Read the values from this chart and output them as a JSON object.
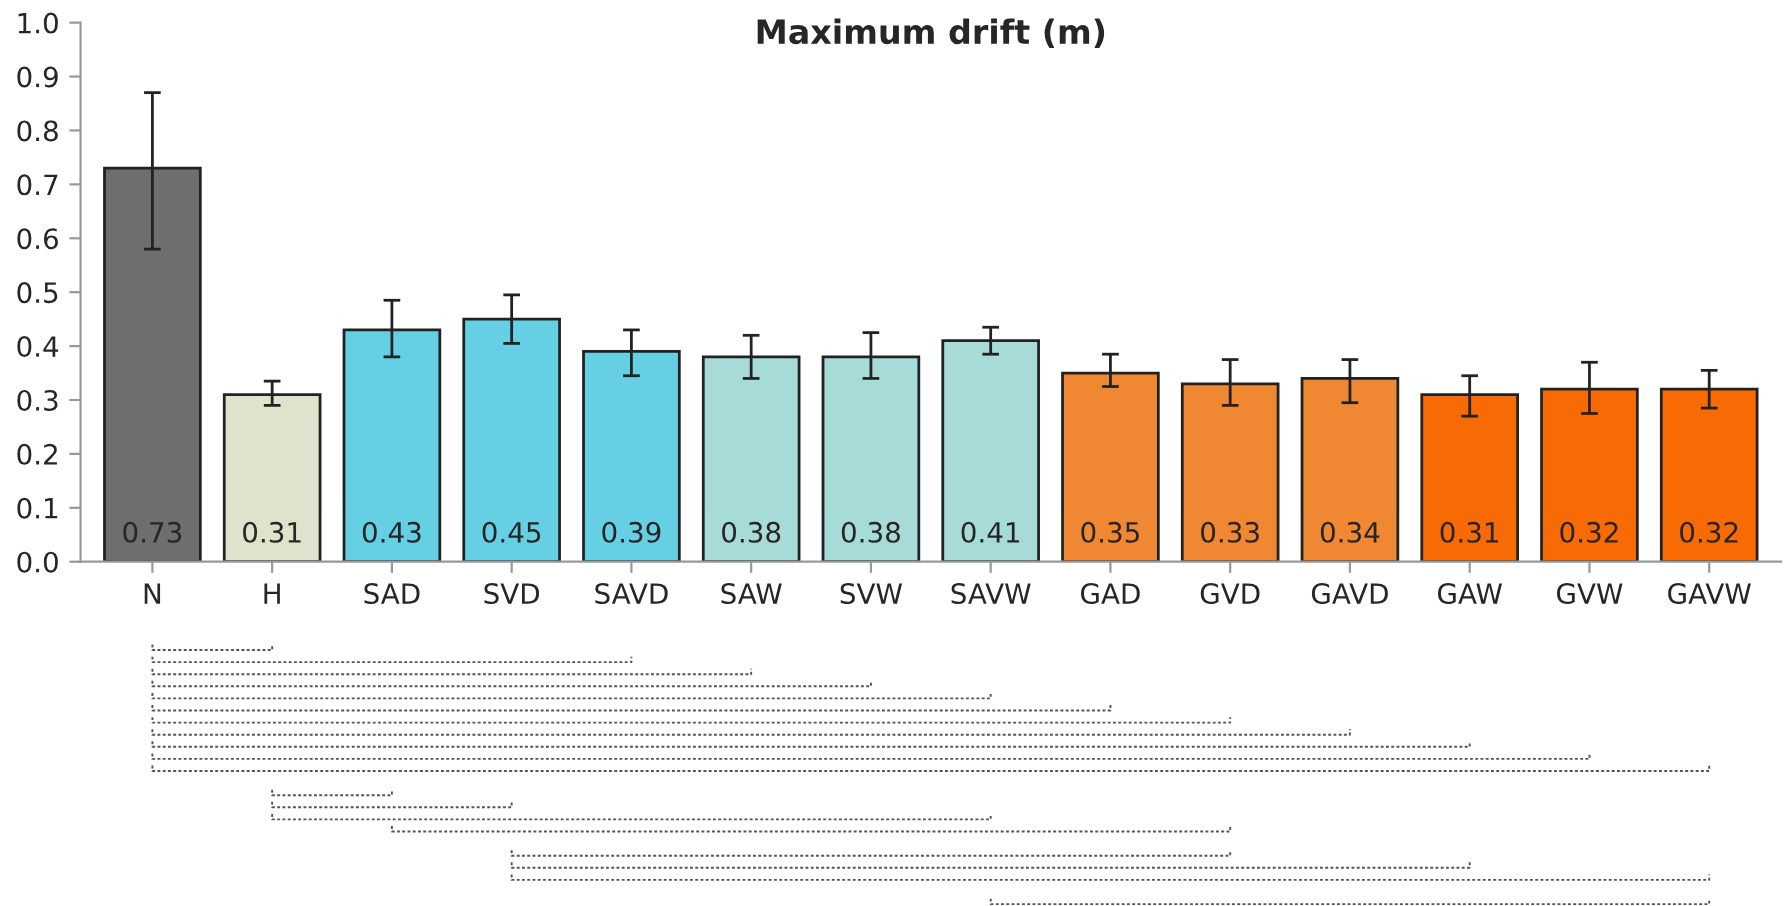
{
  "chart_data": {
    "type": "bar",
    "title": "Maximum drift (m)",
    "categories": [
      "N",
      "H",
      "SAD",
      "SVD",
      "SAVD",
      "SAW",
      "SVW",
      "SAVW",
      "GAD",
      "GVD",
      "GAVD",
      "GAW",
      "GVW",
      "GAVW"
    ],
    "values": [
      0.73,
      0.31,
      0.43,
      0.45,
      0.39,
      0.38,
      0.38,
      0.41,
      0.35,
      0.33,
      0.34,
      0.31,
      0.32,
      0.32
    ],
    "colors": [
      "#6d6e70",
      "#dfe3cb",
      "#65d0e4",
      "#65d0e4",
      "#65d0e4",
      "#a7dbd7",
      "#a7dbd7",
      "#a7dbd7",
      "#f08733",
      "#f08733",
      "#f08733",
      "#f86a03",
      "#f86a03",
      "#f86a03"
    ],
    "errors": [
      [
        0.58,
        0.87
      ],
      [
        0.29,
        0.335
      ],
      [
        0.38,
        0.485
      ],
      [
        0.405,
        0.495
      ],
      [
        0.345,
        0.43
      ],
      [
        0.34,
        0.42
      ],
      [
        0.34,
        0.425
      ],
      [
        0.385,
        0.435
      ],
      [
        0.325,
        0.385
      ],
      [
        0.29,
        0.375
      ],
      [
        0.295,
        0.375
      ],
      [
        0.27,
        0.345
      ],
      [
        0.275,
        0.37
      ],
      [
        0.285,
        0.355
      ]
    ],
    "ylim": [
      0,
      1.0
    ],
    "yticks": [
      {
        "value": 0,
        "label": "0.0"
      },
      0.1,
      0.2,
      0.3,
      0.4,
      0.5,
      0.6,
      0.7,
      0.8,
      0.9,
      {
        "value": 1.0,
        "label": "1.0"
      }
    ],
    "data_labels": true,
    "grid": false,
    "legend": false
  }
}
